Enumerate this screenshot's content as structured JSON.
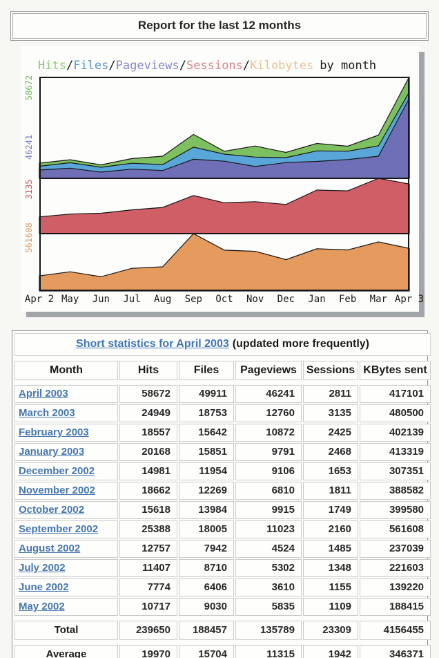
{
  "header": {
    "title": "Report for the last 12 months"
  },
  "chart_data": {
    "type": "area",
    "legend": [
      {
        "label": "Hits",
        "color": "#8cc877"
      },
      {
        "label": "Files",
        "color": "#5598d0"
      },
      {
        "label": "Pageviews",
        "color": "#8787ca"
      },
      {
        "label": "Sessions",
        "color": "#d9858d"
      },
      {
        "label": "Kilobytes",
        "color": "#e8c298"
      }
    ],
    "legend_separator": "/",
    "legend_suffix": "by month",
    "categories": [
      "Apr 2",
      "May",
      "Jun",
      "Jul",
      "Aug",
      "Sep",
      "Oct",
      "Nov",
      "Dec",
      "Jan",
      "Feb",
      "Mar",
      "Apr 3"
    ],
    "bands": [
      {
        "max": 58672,
        "axis_label": "58672",
        "axis_color": "#6db954",
        "series": [
          {
            "name": "Hits",
            "color": "#7dc05f",
            "values": [
              8800,
              10717,
              7774,
              11407,
              12757,
              25388,
              15618,
              18662,
              14981,
              20168,
              18557,
              24949,
              58672
            ]
          },
          {
            "name": "Files",
            "color": "#59a6d9",
            "values": [
              7000,
              9030,
              6406,
              8710,
              7942,
              18005,
              13984,
              12269,
              11954,
              15851,
              15642,
              18753,
              49911
            ]
          },
          {
            "name": "Pageviews",
            "color": "#6f6fb7",
            "values": [
              4800,
              5835,
              3610,
              5302,
              4524,
              11023,
              9915,
              6810,
              9106,
              9791,
              10872,
              12760,
              46241
            ]
          }
        ]
      },
      {
        "max": 3135,
        "axis_label": "3135",
        "axis_color": "#ca4f5c",
        "series": [
          {
            "name": "Sessions",
            "color": "#d05e66",
            "values": [
              950,
              1109,
              1155,
              1348,
              1485,
              2160,
              1749,
              1811,
              1653,
              2468,
              2425,
              3135,
              2811
            ]
          }
        ]
      },
      {
        "max": 561608,
        "axis_label": "561608",
        "axis_color": "#dd9b62",
        "series": [
          {
            "name": "Kilobytes",
            "color": "#e59a5e",
            "values": [
              148000,
              188415,
              139220,
              221603,
              237039,
              561608,
              399580,
              388582,
              307351,
              413319,
              402139,
              480500,
              417101
            ]
          }
        ]
      }
    ]
  },
  "stats_table": {
    "title_link": "Short statistics for April 2003",
    "title_suffix": "(updated more frequently)",
    "columns": [
      "Month",
      "Hits",
      "Files",
      "Pageviews",
      "Sessions",
      "KBytes sent"
    ],
    "rows": [
      [
        "April 2003",
        "58672",
        "49911",
        "46241",
        "2811",
        "417101"
      ],
      [
        "March 2003",
        "24949",
        "18753",
        "12760",
        "3135",
        "480500"
      ],
      [
        "February 2003",
        "18557",
        "15642",
        "10872",
        "2425",
        "402139"
      ],
      [
        "January 2003",
        "20168",
        "15851",
        "9791",
        "2468",
        "413319"
      ],
      [
        "December 2002",
        "14981",
        "11954",
        "9106",
        "1653",
        "307351"
      ],
      [
        "November 2002",
        "18662",
        "12269",
        "6810",
        "1811",
        "388582"
      ],
      [
        "October 2002",
        "15618",
        "13984",
        "9915",
        "1749",
        "399580"
      ],
      [
        "September 2002",
        "25388",
        "18005",
        "11023",
        "2160",
        "561608"
      ],
      [
        "August 2002",
        "12757",
        "7942",
        "4524",
        "1485",
        "237039"
      ],
      [
        "July 2002",
        "11407",
        "8710",
        "5302",
        "1348",
        "221603"
      ],
      [
        "June 2002",
        "7774",
        "6406",
        "3610",
        "1155",
        "139220"
      ],
      [
        "May 2002",
        "10717",
        "9030",
        "5835",
        "1109",
        "188415"
      ]
    ],
    "total": [
      "Total",
      "239650",
      "188457",
      "135789",
      "23309",
      "4156455"
    ],
    "average": [
      "Average",
      "19970",
      "15704",
      "11315",
      "1942",
      "346371"
    ]
  }
}
